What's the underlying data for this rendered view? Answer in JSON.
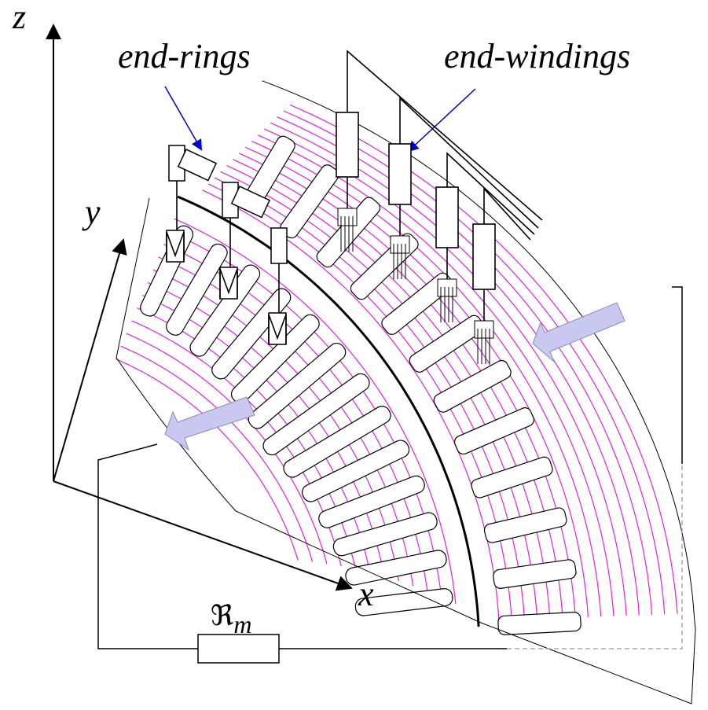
{
  "axes": {
    "z": "z",
    "y": "y",
    "x": "x"
  },
  "labels": {
    "end_rings": "end-rings",
    "end_windings": "end-windings"
  },
  "reluctance": {
    "symbol": "ℜ",
    "subscript": "m"
  }
}
